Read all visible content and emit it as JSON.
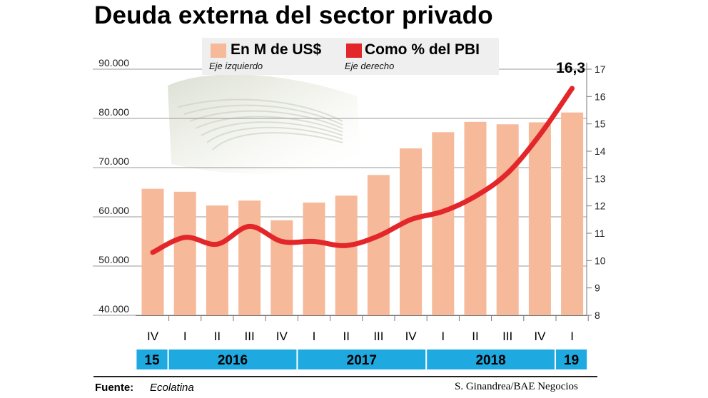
{
  "title": "Deuda externa del sector privado",
  "legend": {
    "bars": {
      "label": "En M de US$",
      "sublabel": "Eje izquierdo",
      "color": "#f6b99a"
    },
    "line": {
      "label": "Como % del PBI",
      "sublabel": "Eje derecho",
      "color": "#e3262a"
    }
  },
  "footer": {
    "source_label": "Fuente:",
    "source_value": "Ecolatina",
    "credit": "S. Ginandrea/BAE Negocios"
  },
  "chart_data": {
    "type": "bar",
    "title": "Deuda externa del sector privado",
    "categories": [
      "IV",
      "I",
      "II",
      "III",
      "IV",
      "I",
      "II",
      "III",
      "IV",
      "I",
      "II",
      "III",
      "IV",
      "I"
    ],
    "year_groups": [
      {
        "label": "15",
        "count": 1
      },
      {
        "label": "2016",
        "count": 4
      },
      {
        "label": "2017",
        "count": 4
      },
      {
        "label": "2018",
        "count": 4
      },
      {
        "label": "19",
        "count": 1
      }
    ],
    "series": [
      {
        "name": "En M de US$",
        "axis": "left",
        "kind": "bar",
        "values": [
          65700,
          65100,
          62300,
          63300,
          59300,
          62900,
          64300,
          68500,
          73900,
          77200,
          79300,
          78800,
          79200,
          81200
        ]
      },
      {
        "name": "Como % del PBI",
        "axis": "right",
        "kind": "line",
        "values": [
          10.3,
          10.85,
          10.6,
          11.25,
          10.7,
          10.7,
          10.55,
          10.9,
          11.5,
          11.8,
          12.35,
          13.2,
          14.6,
          16.3
        ]
      }
    ],
    "y_left": {
      "min": 40000,
      "max": 90000,
      "ticks": [
        "40.000",
        "50.000",
        "60.000",
        "70.000",
        "80.000",
        "90.000"
      ]
    },
    "y_right": {
      "min": 8,
      "max": 17,
      "ticks": [
        "8",
        "9",
        "10",
        "11",
        "12",
        "13",
        "14",
        "15",
        "16",
        "17"
      ]
    },
    "annotation": {
      "text": "16,3",
      "series": "Como % del PBI",
      "index": 13
    },
    "grid": true,
    "legend_position": "top"
  }
}
